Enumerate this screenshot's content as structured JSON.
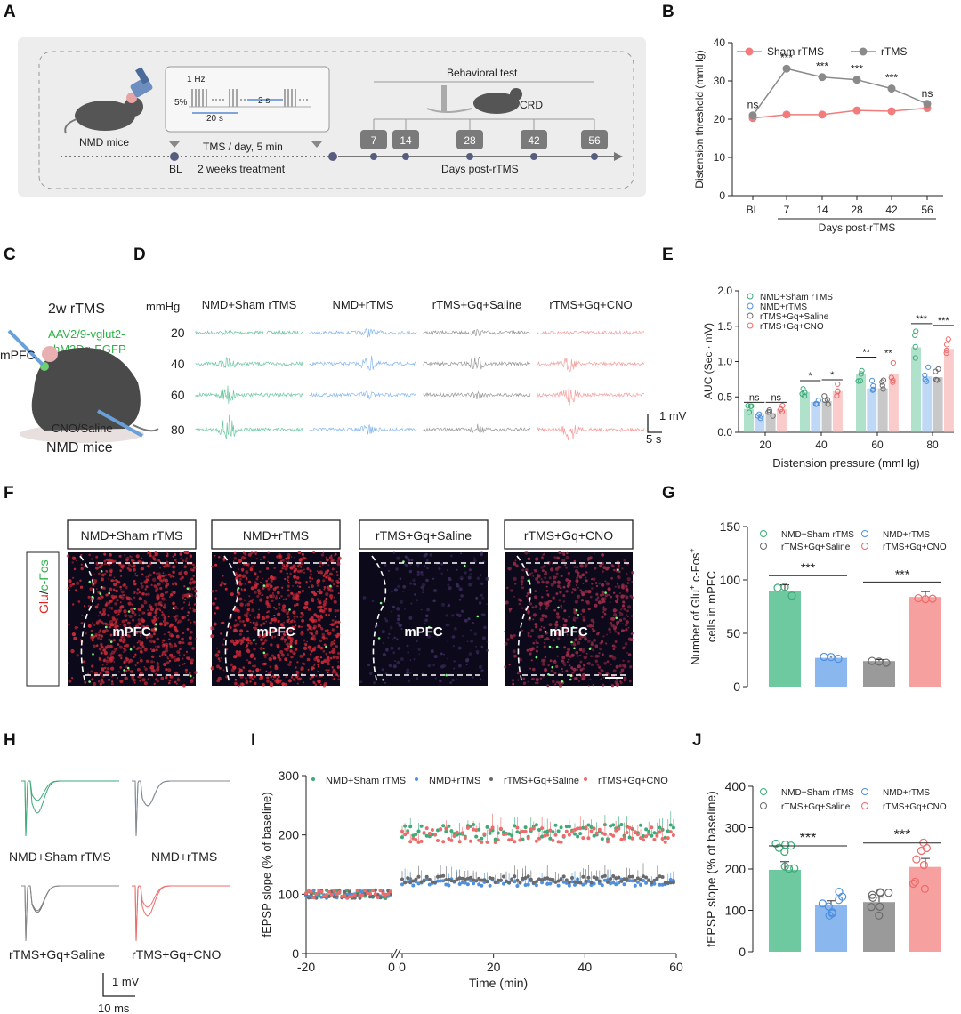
{
  "panel_labels": [
    "A",
    "B",
    "C",
    "D",
    "E",
    "F",
    "G",
    "H",
    "I",
    "J"
  ],
  "colors": {
    "green": "#6ec9a1",
    "blue": "#8ab8ee",
    "gray": "#9a9a9a",
    "red": "#f6a0a0",
    "red_line": "#f27b7b",
    "gray_line": "#8a8a8a"
  },
  "A": {
    "mice": "NMD mice",
    "freq": "1 Hz",
    "pct": "5%",
    "train": "20 s",
    "interval": "2 s",
    "tms": "TMS / day, 5 min",
    "treatment": "2 weeks treatment",
    "bl": "BL",
    "behavior": "Behavioral test",
    "crd": "CRD",
    "days": [
      "7",
      "14",
      "28",
      "42",
      "56"
    ],
    "xlabel": "Days post-rTMS"
  },
  "C": {
    "title": "2w rTMS",
    "virus1": "AAV2/9-vglut2-",
    "virus2": "hM3Dq-EGFP",
    "region": "mPFC",
    "inj": "CNO/Saline",
    "mice": "NMD mice"
  },
  "D": {
    "unit": "mmHg",
    "pressures": [
      "20",
      "40",
      "60",
      "80"
    ],
    "groups": [
      "NMD+Sham rTMS",
      "NMD+rTMS",
      "rTMS+Gq+Saline",
      "rTMS+Gq+CNO"
    ],
    "scale_v": "1 mV",
    "scale_t": "5 s"
  },
  "F": {
    "groups": [
      "NMD+Sham rTMS",
      "NMD+rTMS",
      "rTMS+Gq+Saline",
      "rTMS+Gq+CNO"
    ],
    "region": "mPFC",
    "stain_glu": "Glu",
    "stain_sep": "/",
    "stain_fos": "c-Fos"
  },
  "H": {
    "groups": [
      "NMD+Sham rTMS",
      "NMD+rTMS",
      "rTMS+Gq+Saline",
      "rTMS+Gq+CNO"
    ],
    "scale_v": "1 mV",
    "scale_t": "10 ms"
  },
  "chart_data": [
    {
      "id": "B",
      "type": "line",
      "categories": [
        "BL",
        "7",
        "14",
        "28",
        "42",
        "56"
      ],
      "series": [
        {
          "name": "Sham rTMS",
          "values": [
            20.3,
            21.2,
            21.2,
            22.3,
            22.1,
            22.9
          ]
        },
        {
          "name": "rTMS",
          "values": [
            21.0,
            33.2,
            31.0,
            30.3,
            28.0,
            24.0
          ]
        }
      ],
      "significance": [
        "ns",
        "***",
        "***",
        "***",
        "***",
        "ns"
      ],
      "ylabel": "Distension threshold (mmHg)",
      "xlabel": "Days post-rTMS",
      "ylim": [
        0,
        40
      ],
      "yticks": [
        "0",
        "10",
        "20",
        "30",
        "40"
      ]
    },
    {
      "id": "E",
      "type": "bar",
      "categories": [
        "20",
        "40",
        "60",
        "80"
      ],
      "series": [
        {
          "name": "NMD+Sham rTMS",
          "values": [
            0.33,
            0.57,
            0.83,
            1.2
          ]
        },
        {
          "name": "NMD+rTMS",
          "values": [
            0.22,
            0.43,
            0.62,
            0.79
          ]
        },
        {
          "name": "rTMS+Gq+Saline",
          "values": [
            0.27,
            0.44,
            0.62,
            0.78
          ]
        },
        {
          "name": "rTMS+Gq+CNO",
          "values": [
            0.33,
            0.58,
            0.82,
            1.18
          ]
        }
      ],
      "significance": [
        [
          "ns",
          "ns"
        ],
        [
          "*",
          "*"
        ],
        [
          "**",
          "**"
        ],
        [
          "***",
          "***"
        ]
      ],
      "ylabel": "AUC (Sec · mV)",
      "xlabel": "Distension pressure (mmHg)",
      "ylim": [
        0,
        2.0
      ],
      "yticks": [
        "0.0",
        "0.5",
        "1.0",
        "1.5",
        "2.0"
      ]
    },
    {
      "id": "G",
      "type": "bar",
      "categories": [
        "NMD+Sham rTMS",
        "NMD+rTMS",
        "rTMS+Gq+Saline",
        "rTMS+Gq+CNO"
      ],
      "values": [
        90,
        27,
        24,
        84
      ],
      "significance": [
        "***",
        "***"
      ],
      "ylabel_1": "Number of Glu",
      "ylabel_sup1": "+",
      "ylabel_2": " c-Fos",
      "ylabel_sup2": "+",
      "ylabel_3": "cells in mPFC",
      "ylim": [
        0,
        150
      ],
      "yticks": [
        "0",
        "50",
        "100",
        "150"
      ]
    },
    {
      "id": "I",
      "type": "scatter",
      "series": [
        {
          "name": "NMD+Sham rTMS",
          "baseline": 100,
          "post": 205
        },
        {
          "name": "NMD+rTMS",
          "baseline": 100,
          "post": 120
        },
        {
          "name": "rTMS+Gq+Saline",
          "baseline": 100,
          "post": 125
        },
        {
          "name": "rTMS+Gq+CNO",
          "baseline": 100,
          "post": 200
        }
      ],
      "ylabel": "fEPSP slope (% of baseline)",
      "xlabel": "Time (min)",
      "ylim": [
        0,
        300
      ],
      "yticks": [
        "0",
        "100",
        "200",
        "300"
      ],
      "xticks": [
        "-20",
        "0",
        "0",
        "20",
        "40",
        "60"
      ]
    },
    {
      "id": "J",
      "type": "bar",
      "categories": [
        "NMD+Sham rTMS",
        "NMD+rTMS",
        "rTMS+Gq+Saline",
        "rTMS+Gq+CNO"
      ],
      "values": [
        198,
        112,
        120,
        205
      ],
      "significance": [
        "***",
        "***"
      ],
      "ylabel": "fEPSP slope (% of baseline)",
      "ylim": [
        0,
        400
      ],
      "yticks": [
        "0",
        "100",
        "200",
        "300",
        "400"
      ]
    }
  ]
}
